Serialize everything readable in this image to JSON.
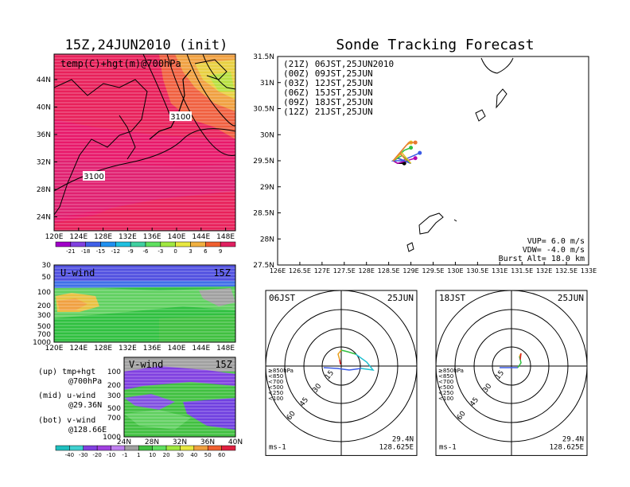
{
  "left_title": "15Z,24JUN2010 (init)",
  "right_title": "Sonde Tracking Forecast",
  "colors": {
    "red": "#e8204a",
    "magenta": "#e0168c",
    "orange": "#e8a040",
    "grey": "#a0a0a0",
    "purple": "#8a2be2",
    "blue": "#3c5ce6",
    "green": "#30c840"
  },
  "map_top": {
    "label": "temp(C)+hgt(m)@700hPa",
    "lat_ticks": [
      "44N",
      "40N",
      "36N",
      "32N",
      "28N",
      "24N"
    ],
    "lon_ticks": [
      "120E",
      "124E",
      "128E",
      "132E",
      "136E",
      "140E",
      "144E",
      "148E"
    ],
    "contours": [
      "3100",
      "3100"
    ]
  },
  "temp_colorbar": {
    "values": [
      "-21",
      "-18",
      "-15",
      "-12",
      "-9",
      "-6",
      "-3",
      "0",
      "3",
      "6",
      "9"
    ],
    "colors": [
      "#a000c8",
      "#8040e0",
      "#4060e8",
      "#2090f0",
      "#20c0e0",
      "#40d0a0",
      "#60e060",
      "#a0e840",
      "#e8e840",
      "#f0b040",
      "#f06030",
      "#e02060"
    ]
  },
  "u_panel": {
    "label": "U-wind",
    "time": "15Z",
    "pres_ticks": [
      "30",
      "50",
      "100",
      "200",
      "300",
      "500",
      "700",
      "1000"
    ],
    "lon_ticks": [
      "120E",
      "124E",
      "128E",
      "132E",
      "136E",
      "140E",
      "144E",
      "148E"
    ]
  },
  "v_panel": {
    "label": "V-wind",
    "time": "15Z",
    "pres_ticks": [
      "100",
      "200",
      "300",
      "500",
      "700",
      "1000"
    ],
    "lat_ticks": [
      "24N",
      "28N",
      "32N",
      "36N",
      "40N"
    ]
  },
  "wind_colorbar": {
    "values": [
      "-40",
      "-30",
      "-20",
      "-10",
      "-1",
      "1",
      "10",
      "20",
      "30",
      "40",
      "50",
      "60"
    ],
    "colors": [
      "#20c0c0",
      "#40d0d0",
      "#8040e0",
      "#a040e0",
      "#c080f0",
      "#a0a0a0",
      "#40c040",
      "#60e060",
      "#a0e840",
      "#e8e840",
      "#f0a040",
      "#f06030",
      "#e02040"
    ]
  },
  "legend_notes": {
    "up": [
      "(up) tmp+hgt",
      "@700hPa"
    ],
    "mid": [
      "(mid) u-wind",
      "@29.36N"
    ],
    "bot": [
      "(bot) v-wind",
      "@128.66E"
    ]
  },
  "tracking_map": {
    "lat_ticks": [
      "31.5N",
      "31N",
      "30.5N",
      "30N",
      "29.5N",
      "29N",
      "28.5N",
      "28N",
      "27.5N"
    ],
    "lon_ticks": [
      "126E",
      "126.5E",
      "127E",
      "127.5E",
      "128E",
      "128.5E",
      "129E",
      "129.5E",
      "130E",
      "130.5E",
      "131E",
      "131.5E",
      "132E",
      "132.5E",
      "133E"
    ],
    "legend": [
      {
        "label": "(21Z) 06JST,25JUN2010",
        "color": "#000000"
      },
      {
        "label": "(00Z) 09JST,25JUN",
        "color": "#b000b0"
      },
      {
        "label": "(03Z) 12JST,25JUN",
        "color": "#3c5ce6"
      },
      {
        "label": "(06Z) 15JST,25JUN",
        "color": "#30c040"
      },
      {
        "label": "(09Z) 18JST,25JUN",
        "color": "#e8c020"
      },
      {
        "label": "(12Z) 21JST,25JUN",
        "color": "#e87830"
      }
    ],
    "params": [
      "VUP=  6.0 m/s",
      "VDW= -4.0 m/s",
      "Burst Alt= 18.0 km"
    ]
  },
  "hodo_left": {
    "time": "06JST",
    "date": "25JUN",
    "rings": [
      "15",
      "30",
      "45",
      "60"
    ],
    "levels": [
      {
        "t": "≥850hPa",
        "c": "#e02020"
      },
      {
        "t": "<850",
        "c": "#f08020"
      },
      {
        "t": "<700",
        "c": "#d0c020"
      },
      {
        "t": "<500",
        "c": "#30c040"
      },
      {
        "t": "<250",
        "c": "#20c0d0"
      },
      {
        "t": "<100",
        "c": "#3c5ce6"
      }
    ],
    "unit": "ms-1",
    "lat": "29.4N",
    "lon": "128.625E"
  },
  "hodo_right": {
    "time": "18JST",
    "date": "25JUN",
    "rings": [
      "15",
      "30",
      "45",
      "60"
    ],
    "levels": [
      {
        "t": "≥850hPa",
        "c": "#e02020"
      },
      {
        "t": "<850",
        "c": "#f08020"
      },
      {
        "t": "<700",
        "c": "#d0c020"
      },
      {
        "t": "<500",
        "c": "#30c040"
      },
      {
        "t": "<250",
        "c": "#20c0d0"
      },
      {
        "t": "<100",
        "c": "#3c5ce6"
      }
    ],
    "unit": "ms-1",
    "lat": "29.4N",
    "lon": "128.625E"
  },
  "chart_data": [
    {
      "type": "heatmap",
      "title": "15Z,24JUN2010 (init)",
      "subtitle": "temp(C)+hgt(m)@700hPa",
      "xlabel": "",
      "ylabel": "",
      "xlim": [
        120,
        150
      ],
      "ylim": [
        22,
        48
      ]
    },
    {
      "type": "heatmap",
      "subtitle": "U-wind",
      "xlim": [
        120,
        150
      ],
      "ylim": [
        1000,
        30
      ]
    },
    {
      "type": "heatmap",
      "subtitle": "V-wind",
      "xlim": [
        24,
        40
      ],
      "ylim": [
        1000,
        100
      ]
    },
    {
      "type": "line",
      "title": "Sonde Tracking Forecast",
      "xlim": [
        126,
        133
      ],
      "ylim": [
        27.5,
        31.5
      ],
      "series": [
        {
          "name": "(21Z) 06JST,25JUN2010",
          "x": [
            129.0,
            128.7,
            128.6,
            128.7,
            128.85
          ],
          "y": [
            29.45,
            29.55,
            29.5,
            29.45,
            29.45
          ]
        },
        {
          "name": "(00Z) 09JST,25JUN",
          "x": [
            129.0,
            128.7,
            128.6,
            128.7,
            129.1
          ],
          "y": [
            29.45,
            29.55,
            29.5,
            29.45,
            29.55
          ]
        },
        {
          "name": "(03Z) 12JST,25JUN",
          "x": [
            129.0,
            128.7,
            128.6,
            128.8,
            129.2
          ],
          "y": [
            29.45,
            29.55,
            29.5,
            29.5,
            29.65
          ]
        },
        {
          "name": "(06Z) 15JST,25JUN",
          "x": [
            129.0,
            128.8,
            128.6,
            128.85,
            129.0
          ],
          "y": [
            29.45,
            29.6,
            29.5,
            29.7,
            29.75
          ]
        },
        {
          "name": "(09Z) 18JST,25JUN",
          "x": [
            129.0,
            128.8,
            128.6,
            128.9,
            129.0
          ],
          "y": [
            29.45,
            29.65,
            29.5,
            29.8,
            29.85
          ]
        },
        {
          "name": "(12Z) 21JST,25JUN",
          "x": [
            128.9,
            128.75,
            128.6,
            128.95,
            129.1
          ],
          "y": [
            29.5,
            29.65,
            29.5,
            29.85,
            29.85
          ]
        }
      ]
    }
  ]
}
